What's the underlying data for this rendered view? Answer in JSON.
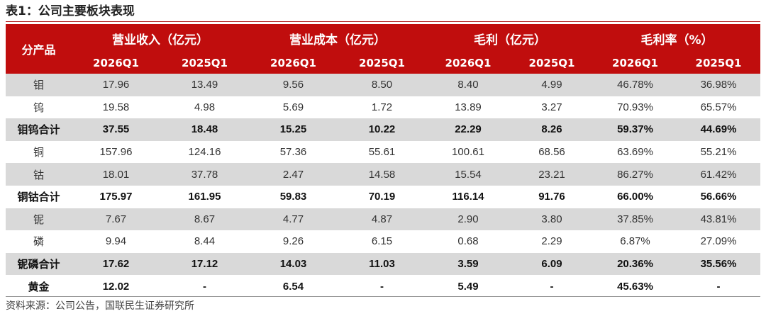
{
  "title": "表1：公司主要板块表现",
  "header": {
    "product": "分产品",
    "groups": [
      "营业收入（亿元）",
      "营业成本（亿元）",
      "毛利（亿元）",
      "毛利率（%）"
    ],
    "periods": [
      "2026Q1",
      "2025Q1",
      "2026Q1",
      "2025Q1",
      "2026Q1",
      "2025Q1",
      "2026Q1",
      "2025Q1"
    ]
  },
  "rows": [
    {
      "name": "钼",
      "cells": [
        "17.96",
        "13.49",
        "9.56",
        "8.50",
        "8.40",
        "4.99",
        "46.78%",
        "36.98%"
      ]
    },
    {
      "name": "钨",
      "cells": [
        "19.58",
        "4.98",
        "5.69",
        "1.72",
        "13.89",
        "3.27",
        "70.93%",
        "65.57%"
      ]
    },
    {
      "name": "钼钨合计",
      "cells": [
        "37.55",
        "18.48",
        "15.25",
        "10.22",
        "22.29",
        "8.26",
        "59.37%",
        "44.69%"
      ]
    },
    {
      "name": "铜",
      "cells": [
        "157.96",
        "124.16",
        "57.36",
        "55.61",
        "100.61",
        "68.56",
        "63.69%",
        "55.21%"
      ]
    },
    {
      "name": "钴",
      "cells": [
        "18.01",
        "37.78",
        "2.47",
        "14.58",
        "15.54",
        "23.21",
        "86.27%",
        "61.42%"
      ]
    },
    {
      "name": "铜钴合计",
      "cells": [
        "175.97",
        "161.95",
        "59.83",
        "70.19",
        "116.14",
        "91.76",
        "66.00%",
        "56.66%"
      ]
    },
    {
      "name": "铌",
      "cells": [
        "7.67",
        "8.67",
        "4.77",
        "4.87",
        "2.90",
        "3.80",
        "37.85%",
        "43.81%"
      ]
    },
    {
      "name": "磷",
      "cells": [
        "9.94",
        "8.44",
        "9.26",
        "6.15",
        "0.68",
        "2.29",
        "6.87%",
        "27.09%"
      ]
    },
    {
      "name": "铌磷合计",
      "cells": [
        "17.62",
        "17.12",
        "14.03",
        "11.03",
        "3.59",
        "6.09",
        "20.36%",
        "35.56%"
      ]
    },
    {
      "name": "黄金",
      "cells": [
        "12.02",
        "-",
        "6.54",
        "-",
        "5.49",
        "-",
        "45.63%",
        "-"
      ]
    }
  ],
  "source": "资料来源：公司公告，国联民生证券研究所",
  "colors": {
    "header_bg": "#c00d0d",
    "shade": "#d9d9d9"
  }
}
